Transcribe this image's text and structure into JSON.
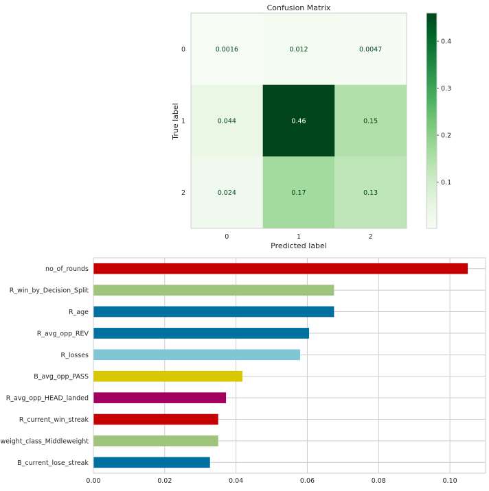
{
  "chart_data": [
    {
      "type": "heatmap",
      "title": "Confusion Matrix",
      "xlabel": "Predicted label",
      "ylabel": "True label",
      "x_categories": [
        "0",
        "1",
        "2"
      ],
      "y_categories": [
        "0",
        "1",
        "2"
      ],
      "values": [
        [
          0.0016,
          0.012,
          0.0047
        ],
        [
          0.044,
          0.46,
          0.15
        ],
        [
          0.024,
          0.17,
          0.13
        ]
      ],
      "value_labels": [
        [
          "0.0016",
          "0.012",
          "0.0047"
        ],
        [
          "0.044",
          "0.46",
          "0.15"
        ],
        [
          "0.024",
          "0.17",
          "0.13"
        ]
      ],
      "colormap": "Greens",
      "colorbar": {
        "range": [
          0.0016,
          0.46
        ],
        "ticks": [
          0.1,
          0.2,
          0.3,
          0.4
        ],
        "tick_labels": [
          "0.1",
          "0.2",
          "0.3",
          "0.4"
        ]
      }
    },
    {
      "type": "bar",
      "orientation": "horizontal",
      "categories": [
        "no_of_rounds",
        "R_win_by_Decision_Split",
        "R_age",
        "R_avg_opp_REV",
        "R_losses",
        "B_avg_opp_PASS",
        "R_avg_opp_HEAD_landed",
        "R_current_win_streak",
        "weight_class_Middleweight",
        "B_current_lose_streak"
      ],
      "values": [
        0.105,
        0.0675,
        0.0675,
        0.0605,
        0.058,
        0.0418,
        0.0372,
        0.035,
        0.035,
        0.0327
      ],
      "colors": [
        "#c40000",
        "#9dc47a",
        "#0070a0",
        "#0070a0",
        "#80c7d6",
        "#d9c800",
        "#a1005e",
        "#c40000",
        "#9dc47a",
        "#0070a0"
      ],
      "xlim": [
        0,
        0.11
      ],
      "xticks": [
        0,
        0.02,
        0.04,
        0.06,
        0.08,
        0.1
      ],
      "xtick_labels": [
        "0.00",
        "0.02",
        "0.04",
        "0.06",
        "0.08",
        "0.10"
      ],
      "grid": true
    }
  ]
}
